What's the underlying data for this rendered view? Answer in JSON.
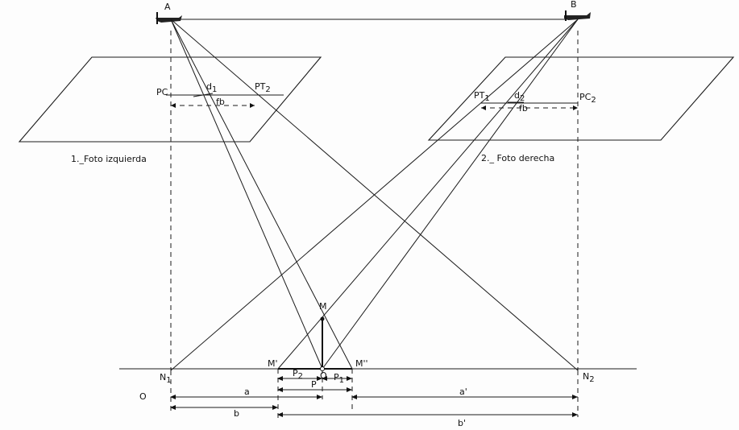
{
  "labels": {
    "A": "A",
    "B": "B",
    "PC_left": "PC",
    "d1": "d",
    "d1_sub": "1",
    "PT2_main": "PT",
    "PT2_sub": "2",
    "fb_left": "fb",
    "PT1_main": "PT",
    "PT1_sub": "1",
    "d2": "d",
    "d2_sub": "2",
    "PC2_main": "PC",
    "PC2_sub": "2",
    "fb_right": "fb",
    "caption_left": "1._Foto izquierda",
    "caption_right": "2._ Foto derecha",
    "M": "M",
    "M_prime": "M'",
    "M_dprime": "M''",
    "O_mid": "O",
    "O_left": "O",
    "N1_main": "N",
    "N1_sub": "1",
    "N2_main": "N",
    "N2_sub": "2",
    "P2_main": "P",
    "P2_sub": "2",
    "P1_main": "P",
    "P1_sub": "1",
    "P": "P",
    "a": "a",
    "a_prime": "a'",
    "b": "b",
    "b_prime": "b'"
  }
}
